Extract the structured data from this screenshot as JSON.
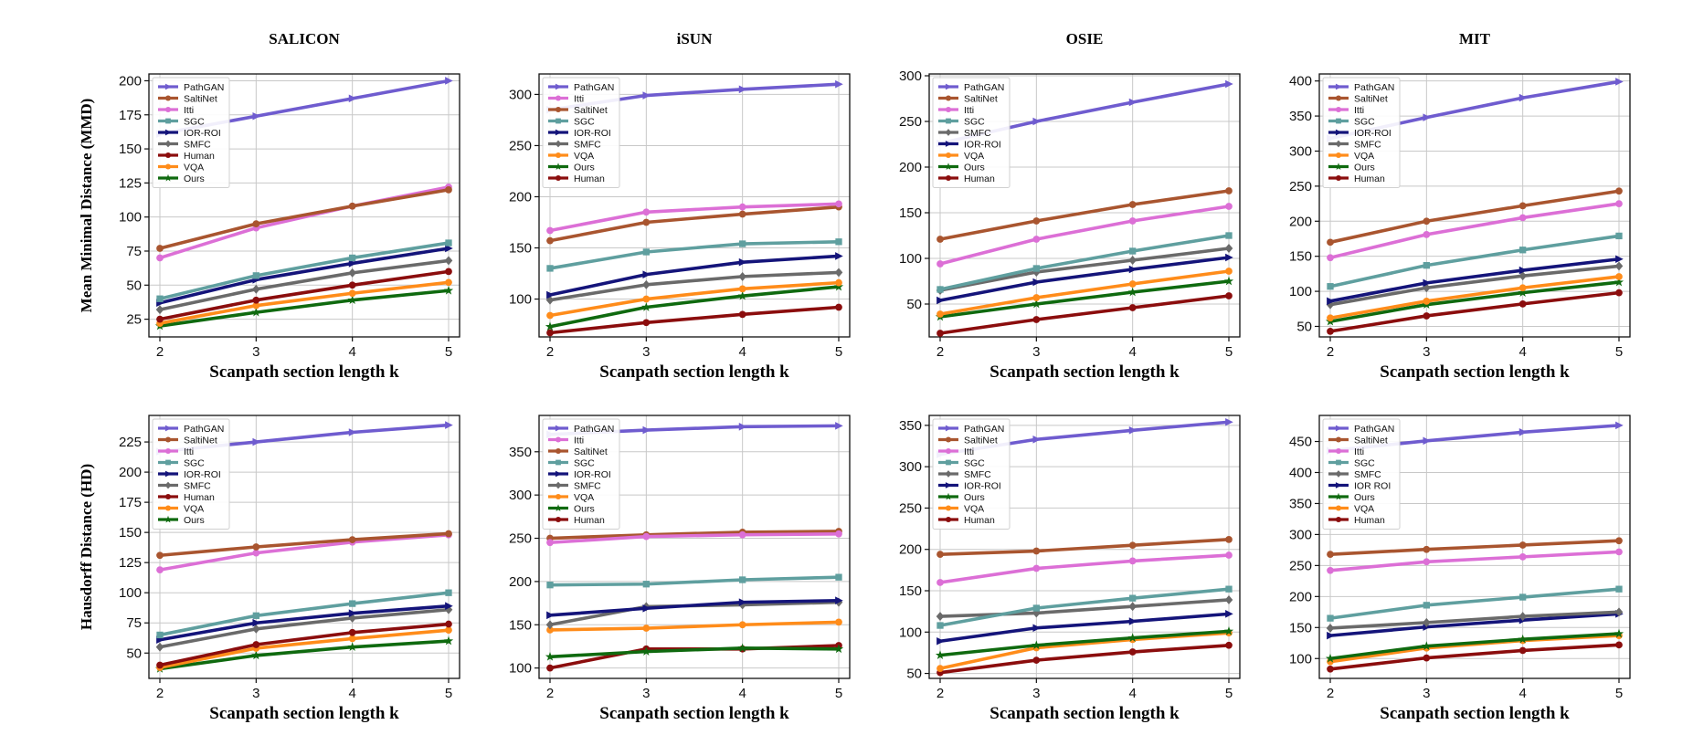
{
  "colors": {
    "PathGAN": "#6f5ccf",
    "SaltiNet": "#a9552f",
    "Itti": "#dc6fd6",
    "SGC": "#5f9f9f",
    "IOR-ROI": "#14147a",
    "IOR ROI": "#14147a",
    "SMFC": "#6a6a6a",
    "Human": "#8b0d0d",
    "VQA": "#ff8c1a",
    "Ours": "#0f6a0f"
  },
  "markers": {
    "PathGAN": "triangle-right",
    "SaltiNet": "circle",
    "Itti": "circle",
    "SGC": "square",
    "IOR-ROI": "triangle-right",
    "IOR ROI": "triangle-right",
    "SMFC": "diamond",
    "Human": "circle",
    "VQA": "circle",
    "Ours": "star"
  },
  "row_labels": [
    "Mean Minimal Distance (MMD)",
    "Hausdorff Distance (HD)"
  ],
  "chart_data": [
    {
      "type": "line",
      "title": "SALICON",
      "xlabel": "Scanpath section length k",
      "ylabel": "Mean Minimal Distance (MMD)",
      "x": [
        2,
        3,
        4,
        5
      ],
      "ylim": [
        12,
        205
      ],
      "yticks": [
        25,
        50,
        75,
        100,
        125,
        150,
        175,
        200
      ],
      "grid": true,
      "legend": "top-left",
      "legend_order": [
        "PathGAN",
        "SaltiNet",
        "Itti",
        "SGC",
        "IOR-ROI",
        "SMFC",
        "Human",
        "VQA",
        "Ours"
      ],
      "series": [
        {
          "name": "PathGAN",
          "values": [
            161,
            174,
            187,
            200
          ]
        },
        {
          "name": "SaltiNet",
          "values": [
            77,
            95,
            108,
            120
          ]
        },
        {
          "name": "Itti",
          "values": [
            70,
            92,
            108,
            122
          ]
        },
        {
          "name": "SGC",
          "values": [
            40,
            57,
            70,
            81
          ]
        },
        {
          "name": "IOR-ROI",
          "values": [
            37,
            54,
            66,
            77
          ]
        },
        {
          "name": "SMFC",
          "values": [
            32,
            47,
            59,
            68
          ]
        },
        {
          "name": "Human",
          "values": [
            25,
            39,
            50,
            60
          ]
        },
        {
          "name": "VQA",
          "values": [
            22,
            35,
            44,
            52
          ]
        },
        {
          "name": "Ours",
          "values": [
            20,
            30,
            39,
            46
          ]
        }
      ]
    },
    {
      "type": "line",
      "title": "iSUN",
      "xlabel": "Scanpath section length k",
      "ylabel": "",
      "x": [
        2,
        3,
        4,
        5
      ],
      "ylim": [
        63,
        320
      ],
      "yticks": [
        100,
        150,
        200,
        250,
        300
      ],
      "grid": true,
      "legend": "top-left",
      "legend_order": [
        "PathGAN",
        "Itti",
        "SaltiNet",
        "SGC",
        "IOR-ROI",
        "SMFC",
        "VQA",
        "Ours",
        "Human"
      ],
      "series": [
        {
          "name": "PathGAN",
          "values": [
            285,
            299,
            305,
            310
          ]
        },
        {
          "name": "Itti",
          "values": [
            167,
            185,
            190,
            193
          ]
        },
        {
          "name": "SaltiNet",
          "values": [
            157,
            175,
            183,
            190
          ]
        },
        {
          "name": "SGC",
          "values": [
            130,
            146,
            154,
            156
          ]
        },
        {
          "name": "IOR-ROI",
          "values": [
            104,
            124,
            136,
            142
          ]
        },
        {
          "name": "SMFC",
          "values": [
            99,
            114,
            122,
            126
          ]
        },
        {
          "name": "VQA",
          "values": [
            84,
            100,
            110,
            116
          ]
        },
        {
          "name": "Ours",
          "values": [
            73,
            92,
            103,
            112
          ]
        },
        {
          "name": "Human",
          "values": [
            67,
            77,
            85,
            92
          ]
        }
      ]
    },
    {
      "type": "line",
      "title": "OSIE",
      "xlabel": "Scanpath section length k",
      "ylabel": "",
      "x": [
        2,
        3,
        4,
        5
      ],
      "ylim": [
        14,
        302
      ],
      "yticks": [
        50,
        100,
        150,
        200,
        250,
        300
      ],
      "grid": true,
      "legend": "top-left",
      "legend_order": [
        "PathGAN",
        "SaltiNet",
        "Itti",
        "SGC",
        "SMFC",
        "IOR-ROI",
        "VQA",
        "Ours",
        "Human"
      ],
      "series": [
        {
          "name": "PathGAN",
          "values": [
            226,
            250,
            271,
            291
          ]
        },
        {
          "name": "SaltiNet",
          "values": [
            121,
            141,
            159,
            174
          ]
        },
        {
          "name": "Itti",
          "values": [
            94,
            121,
            141,
            157
          ]
        },
        {
          "name": "SGC",
          "values": [
            66,
            89,
            108,
            125
          ]
        },
        {
          "name": "SMFC",
          "values": [
            65,
            85,
            98,
            111
          ]
        },
        {
          "name": "IOR-ROI",
          "values": [
            54,
            74,
            88,
            101
          ]
        },
        {
          "name": "VQA",
          "values": [
            39,
            57,
            72,
            86
          ]
        },
        {
          "name": "Ours",
          "values": [
            36,
            50,
            63,
            75
          ]
        },
        {
          "name": "Human",
          "values": [
            18,
            33,
            46,
            59
          ]
        }
      ]
    },
    {
      "type": "line",
      "title": "MIT",
      "xlabel": "Scanpath section length k",
      "ylabel": "",
      "x": [
        2,
        3,
        4,
        5
      ],
      "ylim": [
        35,
        410
      ],
      "yticks": [
        50,
        100,
        150,
        200,
        250,
        300,
        350,
        400
      ],
      "grid": true,
      "legend": "top-left",
      "legend_order": [
        "PathGAN",
        "SaltiNet",
        "Itti",
        "SGC",
        "IOR-ROI",
        "SMFC",
        "VQA",
        "Ours",
        "Human"
      ],
      "series": [
        {
          "name": "PathGAN",
          "values": [
            318,
            348,
            376,
            399
          ]
        },
        {
          "name": "SaltiNet",
          "values": [
            170,
            200,
            222,
            243
          ]
        },
        {
          "name": "Itti",
          "values": [
            148,
            181,
            205,
            225
          ]
        },
        {
          "name": "SGC",
          "values": [
            107,
            137,
            159,
            179
          ]
        },
        {
          "name": "IOR-ROI",
          "values": [
            86,
            112,
            130,
            146
          ]
        },
        {
          "name": "SMFC",
          "values": [
            81,
            105,
            122,
            136
          ]
        },
        {
          "name": "VQA",
          "values": [
            62,
            86,
            105,
            121
          ]
        },
        {
          "name": "Ours",
          "values": [
            57,
            81,
            98,
            113
          ]
        },
        {
          "name": "Human",
          "values": [
            43,
            65,
            82,
            98
          ]
        }
      ]
    },
    {
      "type": "line",
      "title": "",
      "xlabel": "Scanpath section length k",
      "ylabel": "Hausdorff Distance (HD)",
      "x": [
        2,
        3,
        4,
        5
      ],
      "ylim": [
        29,
        247
      ],
      "yticks": [
        50,
        75,
        100,
        125,
        150,
        175,
        200,
        225
      ],
      "grid": true,
      "legend": "top-left",
      "legend_order": [
        "PathGAN",
        "SaltiNet",
        "Itti",
        "SGC",
        "IOR-ROI",
        "SMFC",
        "Human",
        "VQA",
        "Ours"
      ],
      "series": [
        {
          "name": "PathGAN",
          "values": [
            217,
            225,
            233,
            239
          ]
        },
        {
          "name": "SaltiNet",
          "values": [
            131,
            138,
            144,
            149
          ]
        },
        {
          "name": "Itti",
          "values": [
            119,
            133,
            142,
            148
          ]
        },
        {
          "name": "SGC",
          "values": [
            65,
            81,
            91,
            100
          ]
        },
        {
          "name": "IOR-ROI",
          "values": [
            61,
            75,
            83,
            89
          ]
        },
        {
          "name": "SMFC",
          "values": [
            55,
            70,
            79,
            86
          ]
        },
        {
          "name": "Human",
          "values": [
            40,
            57,
            67,
            74
          ]
        },
        {
          "name": "VQA",
          "values": [
            38,
            54,
            62,
            69
          ]
        },
        {
          "name": "Ours",
          "values": [
            37,
            48,
            55,
            60
          ]
        }
      ]
    },
    {
      "type": "line",
      "title": "",
      "xlabel": "Scanpath section length k",
      "ylabel": "",
      "x": [
        2,
        3,
        4,
        5
      ],
      "ylim": [
        88,
        392
      ],
      "yticks": [
        100,
        150,
        200,
        250,
        300,
        350
      ],
      "grid": true,
      "legend": "top-left",
      "legend_order": [
        "PathGAN",
        "Itti",
        "SaltiNet",
        "SGC",
        "IOR-ROI",
        "SMFC",
        "VQA",
        "Ours",
        "Human"
      ],
      "series": [
        {
          "name": "PathGAN",
          "values": [
            370,
            375,
            379,
            380
          ]
        },
        {
          "name": "Itti",
          "values": [
            245,
            252,
            254,
            255
          ]
        },
        {
          "name": "SaltiNet",
          "values": [
            250,
            254,
            257,
            258
          ]
        },
        {
          "name": "SGC",
          "values": [
            196,
            197,
            202,
            205
          ]
        },
        {
          "name": "IOR-ROI",
          "values": [
            161,
            169,
            176,
            178
          ]
        },
        {
          "name": "SMFC",
          "values": [
            150,
            171,
            173,
            176
          ]
        },
        {
          "name": "VQA",
          "values": [
            144,
            146,
            150,
            153
          ]
        },
        {
          "name": "Ours",
          "values": [
            113,
            119,
            123,
            122
          ]
        },
        {
          "name": "Human",
          "values": [
            100,
            122,
            122,
            126
          ]
        }
      ]
    },
    {
      "type": "line",
      "title": "",
      "xlabel": "Scanpath section length k",
      "ylabel": "",
      "x": [
        2,
        3,
        4,
        5
      ],
      "ylim": [
        44,
        362
      ],
      "yticks": [
        50,
        100,
        150,
        200,
        250,
        300,
        350
      ],
      "grid": true,
      "legend": "top-left",
      "legend_order": [
        "PathGAN",
        "SaltiNet",
        "Itti",
        "SGC",
        "SMFC",
        "IOR-ROI",
        "Ours",
        "VQA",
        "Human"
      ],
      "series": [
        {
          "name": "PathGAN",
          "values": [
            315,
            333,
            344,
            354
          ]
        },
        {
          "name": "SaltiNet",
          "values": [
            194,
            198,
            205,
            212
          ]
        },
        {
          "name": "Itti",
          "values": [
            160,
            177,
            186,
            193
          ]
        },
        {
          "name": "SGC",
          "values": [
            108,
            129,
            141,
            152
          ]
        },
        {
          "name": "SMFC",
          "values": [
            119,
            123,
            131,
            139
          ]
        },
        {
          "name": "IOR-ROI",
          "values": [
            89,
            105,
            113,
            122
          ]
        },
        {
          "name": "Ours",
          "values": [
            72,
            84,
            93,
            101
          ]
        },
        {
          "name": "VQA",
          "values": [
            56,
            81,
            91,
            99
          ]
        },
        {
          "name": "Human",
          "values": [
            51,
            66,
            76,
            84
          ]
        }
      ]
    },
    {
      "type": "line",
      "title": "",
      "xlabel": "Scanpath section length k",
      "ylabel": "",
      "x": [
        2,
        3,
        4,
        5
      ],
      "ylim": [
        68,
        492
      ],
      "yticks": [
        100,
        150,
        200,
        250,
        300,
        350,
        400,
        450
      ],
      "grid": true,
      "legend": "top-left",
      "legend_order": [
        "PathGAN",
        "SaltiNet",
        "Itti",
        "SGC",
        "SMFC",
        "IOR ROI",
        "Ours",
        "VQA",
        "Human"
      ],
      "series": [
        {
          "name": "PathGAN",
          "values": [
            435,
            451,
            465,
            476
          ]
        },
        {
          "name": "SaltiNet",
          "values": [
            268,
            276,
            283,
            290
          ]
        },
        {
          "name": "Itti",
          "values": [
            242,
            256,
            264,
            272
          ]
        },
        {
          "name": "SGC",
          "values": [
            165,
            186,
            199,
            212
          ]
        },
        {
          "name": "SMFC",
          "values": [
            149,
            158,
            168,
            175
          ]
        },
        {
          "name": "IOR ROI",
          "values": [
            137,
            151,
            162,
            172
          ]
        },
        {
          "name": "Ours",
          "values": [
            100,
            120,
            131,
            140
          ]
        },
        {
          "name": "VQA",
          "values": [
            95,
            117,
            129,
            137
          ]
        },
        {
          "name": "Human",
          "values": [
            83,
            101,
            113,
            122
          ]
        }
      ]
    }
  ]
}
